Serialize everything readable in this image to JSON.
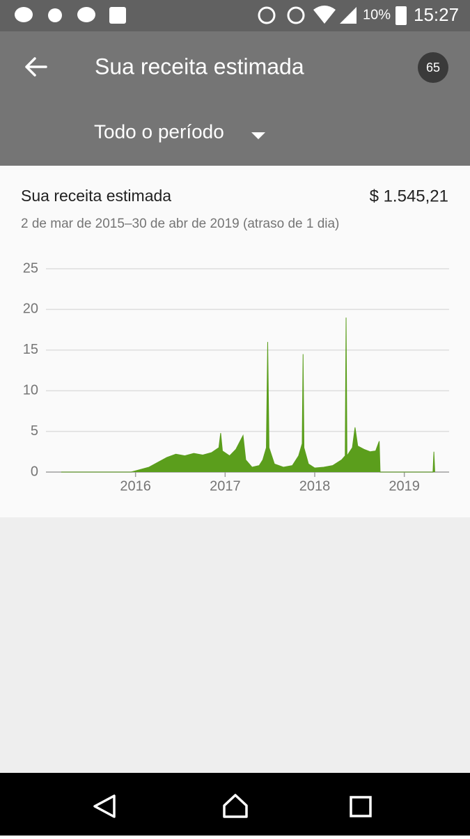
{
  "status_bar": {
    "battery": "10%",
    "time": "15:27"
  },
  "header": {
    "title": "Sua receita estimada",
    "badge": "65",
    "period": "Todo o período"
  },
  "card": {
    "title": "Sua receita estimada",
    "amount": "$ 1.545,21",
    "subtitle": "2 de mar de 2015–30 de abr de 2019 (atraso de 1 dia)"
  },
  "chart_data": {
    "type": "area",
    "color": "#5b9e1c",
    "x": [
      2015.17,
      2015.95,
      2016.05,
      2016.15,
      2016.25,
      2016.35,
      2016.45,
      2016.55,
      2016.65,
      2016.75,
      2016.85,
      2016.93,
      2016.95,
      2016.97,
      2017.05,
      2017.12,
      2017.2,
      2017.23,
      2017.3,
      2017.38,
      2017.42,
      2017.46,
      2017.475,
      2017.49,
      2017.55,
      2017.65,
      2017.75,
      2017.82,
      2017.86,
      2017.87,
      2017.88,
      2017.93,
      2018.0,
      2018.1,
      2018.2,
      2018.3,
      2018.34,
      2018.35,
      2018.36,
      2018.42,
      2018.45,
      2018.48,
      2018.55,
      2018.62,
      2018.68,
      2018.72,
      2018.73,
      2019.32,
      2019.33,
      2019.34
    ],
    "values": [
      0,
      0,
      0.3,
      0.6,
      1.2,
      1.8,
      2.2,
      2.0,
      2.3,
      2.1,
      2.4,
      3.0,
      4.8,
      2.6,
      2.0,
      2.8,
      4.5,
      1.5,
      0.6,
      0.8,
      1.5,
      3,
      16,
      3,
      1.0,
      0.6,
      0.8,
      2.0,
      3.5,
      14.5,
      3,
      1.0,
      0.5,
      0.6,
      0.8,
      1.5,
      2,
      19,
      2,
      3,
      5.5,
      3.2,
      2.8,
      2.5,
      2.6,
      3.8,
      0,
      0,
      2.5,
      0
    ],
    "xlim": [
      2015,
      2019.5
    ],
    "xticks": [
      2016,
      2017,
      2018,
      2019
    ],
    "ylim": [
      0,
      25
    ],
    "yticks": [
      0,
      5,
      10,
      15,
      20,
      25
    ],
    "grid": true
  }
}
